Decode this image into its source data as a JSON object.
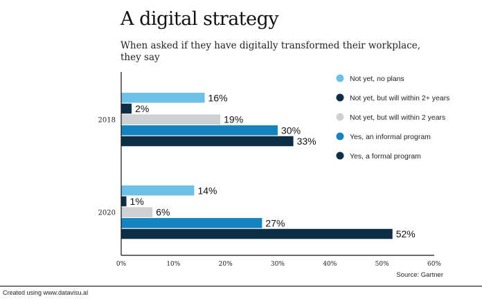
{
  "chart_data": {
    "type": "bar",
    "orientation": "horizontal",
    "title": "A digital strategy",
    "subtitle": "When asked if they have digitally transformed their workplace, they say",
    "categories": [
      "2018",
      "2020"
    ],
    "series": [
      {
        "name": "Not yet, no plans",
        "color": "#6dc0e6",
        "values": [
          16,
          14
        ]
      },
      {
        "name": "Not yet, but will within 2+ years",
        "color": "#0e2e45",
        "values": [
          2,
          1
        ]
      },
      {
        "name": "Not yet, but will within 2 years",
        "color": "#cfd0d1",
        "values": [
          19,
          6
        ]
      },
      {
        "name": "Yes, an informal program",
        "color": "#1583bd",
        "values": [
          30,
          27
        ]
      },
      {
        "name": "Yes, a formal program",
        "color": "#0e2e45",
        "values": [
          33,
          52
        ]
      }
    ],
    "value_suffix": "%",
    "xlim": [
      0,
      60
    ],
    "xticks": [
      "0%",
      "10%",
      "20%",
      "30%",
      "40%",
      "50%",
      "60%"
    ],
    "grid": false,
    "legend_position": "right"
  },
  "source": "Source: Gartner",
  "credit": "Created using www.datavisu.al"
}
